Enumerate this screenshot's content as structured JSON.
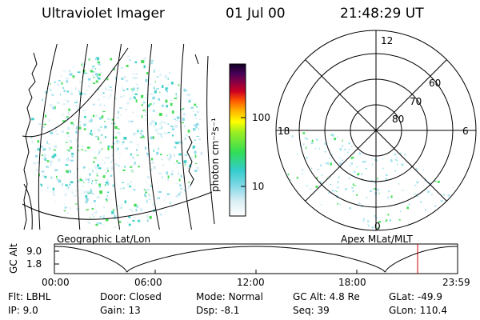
{
  "header": {
    "instrument": "Ultraviolet Imager",
    "date": "01 Jul 00",
    "time": "21:48:29 UT"
  },
  "colorbar": {
    "label": "photon cm⁻²s⁻¹",
    "ticks": [
      "100",
      "10"
    ]
  },
  "polar_plot": {
    "mlt_labels": {
      "top": "12",
      "right": "6",
      "bottom": "0",
      "left": "18"
    },
    "lat_labels": [
      "60",
      "70",
      "80"
    ]
  },
  "panel_labels": {
    "left": "Geographic Lat/Lon",
    "right": "Apex MLat/MLT"
  },
  "altitude_plot": {
    "ylabel": "GC Alt",
    "y_ticks": [
      "9.0",
      "1.8"
    ],
    "x_ticks": [
      "00:00",
      "06:00",
      "12:00",
      "18:00",
      "23:59"
    ],
    "marker_color": "#cc0000",
    "line_color": "#000000"
  },
  "info_rows": [
    [
      {
        "label": "Flt:",
        "value": "LBHL"
      },
      {
        "label": "Door:",
        "value": "Closed"
      },
      {
        "label": "Mode:",
        "value": "Normal"
      },
      {
        "label": "GC Alt:",
        "value": "4.8 Re"
      },
      {
        "label": "GLat:",
        "value": "-49.9"
      }
    ],
    [
      {
        "label": "IP:",
        "value": "9.0"
      },
      {
        "label": "Gain:",
        "value": "13"
      },
      {
        "label": "Dsp:",
        "value": "-8.1"
      },
      {
        "label": "Seq:",
        "value": "39"
      },
      {
        "label": "GLon:",
        "value": "110.4"
      }
    ]
  ]
}
